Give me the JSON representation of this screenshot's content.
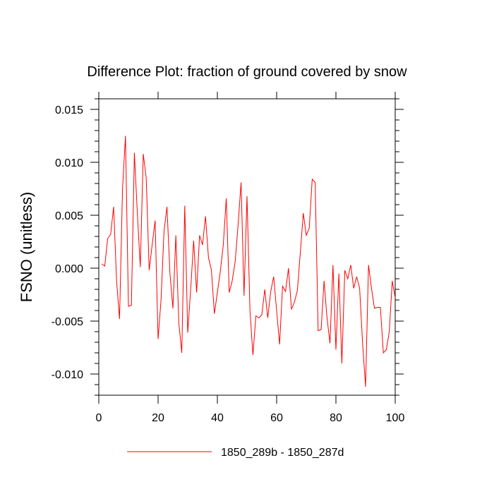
{
  "chart_data": {
    "type": "line",
    "title": "Difference Plot: fraction of ground covered by snow",
    "ylabel": "FSNO  (unitless)",
    "xlabel": "",
    "xlim": [
      0,
      100
    ],
    "ylim": [
      -0.012,
      0.016
    ],
    "x_ticks": [
      "0",
      "20",
      "40",
      "60",
      "80",
      "100"
    ],
    "x_tick_values": [
      0,
      20,
      40,
      60,
      80,
      100
    ],
    "y_ticks": [
      "0.015",
      "0.010",
      "0.005",
      "0.000",
      "-0.005",
      "-0.010"
    ],
    "y_tick_values": [
      0.015,
      0.01,
      0.005,
      0.0,
      -0.005,
      -0.01
    ],
    "grid": false,
    "legend_position": "bottom",
    "series": [
      {
        "name": "1850_289b - 1850_287d",
        "color": "#ff0000",
        "x": [
          1,
          2,
          3,
          4,
          5,
          6,
          7,
          8,
          9,
          10,
          11,
          12,
          13,
          14,
          15,
          16,
          17,
          18,
          19,
          20,
          21,
          22,
          23,
          24,
          25,
          26,
          27,
          28,
          29,
          30,
          31,
          32,
          33,
          34,
          35,
          36,
          37,
          38,
          39,
          40,
          41,
          42,
          43,
          44,
          45,
          46,
          47,
          48,
          49,
          50,
          51,
          52,
          53,
          54,
          55,
          56,
          57,
          58,
          59,
          60,
          61,
          62,
          63,
          64,
          65,
          66,
          67,
          68,
          69,
          70,
          71,
          72,
          73,
          74,
          75,
          76,
          77,
          78,
          79,
          80,
          81,
          82,
          83,
          84,
          85,
          86,
          87,
          88,
          89,
          90,
          91,
          92,
          93,
          94,
          95,
          96,
          97,
          98,
          99,
          100
        ],
        "values": [
          0.0004,
          0.0002,
          0.0028,
          0.0032,
          0.0058,
          -0.0012,
          -0.0048,
          0.0075,
          0.0125,
          -0.0036,
          -0.0035,
          0.0109,
          0.0052,
          0.0001,
          0.0108,
          0.0085,
          -0.0002,
          0.0022,
          0.0045,
          -0.0067,
          -0.003,
          0.0035,
          0.0058,
          -0.0005,
          -0.0038,
          0.0031,
          -0.0052,
          -0.008,
          0.0059,
          -0.0061,
          -0.002,
          0.0026,
          -0.0023,
          0.0031,
          0.0022,
          0.0049,
          0.001,
          -0.0002,
          -0.0043,
          -0.0023,
          -0.0003,
          0.0022,
          0.0066,
          -0.0023,
          -0.0012,
          0.0006,
          0.0041,
          0.0081,
          -0.0026,
          0.0068,
          -0.004,
          -0.0082,
          -0.0045,
          -0.0047,
          -0.0044,
          -0.002,
          -0.0047,
          -0.0022,
          -0.0008,
          -0.004,
          -0.0072,
          -0.0017,
          -0.0022,
          0.0,
          -0.0039,
          -0.0032,
          -0.0021,
          0.0015,
          0.0052,
          0.0031,
          0.0038,
          0.0084,
          0.0081,
          -0.0059,
          -0.0058,
          -0.0012,
          -0.0047,
          -0.0071,
          0.0003,
          -0.0077,
          -0.0005,
          -0.009,
          -0.0002,
          -0.001,
          0.0003,
          -0.0019,
          -0.0008,
          -0.0019,
          -0.0071,
          -0.0112,
          0.0003,
          -0.0019,
          -0.0038,
          -0.0037,
          -0.0037,
          -0.008,
          -0.0077,
          -0.006,
          -0.0012,
          -0.0028
        ]
      }
    ]
  }
}
